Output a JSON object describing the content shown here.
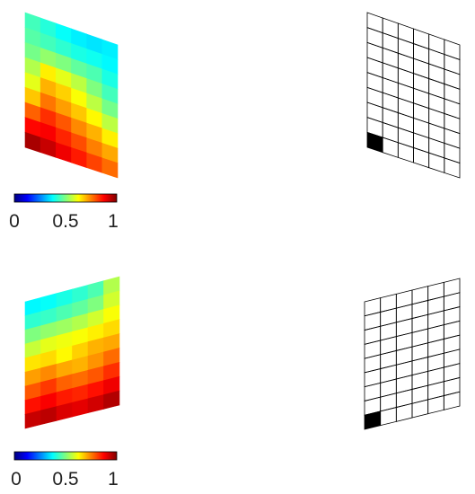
{
  "colormap": {
    "name": "jet",
    "stops": [
      "#00007f",
      "#0000ff",
      "#007fff",
      "#00ffff",
      "#7fff7f",
      "#ffff00",
      "#ff7f00",
      "#ff0000",
      "#7f0000"
    ]
  },
  "colorbar": {
    "range": [
      0,
      1
    ],
    "tick_labels": [
      "0",
      "0.5",
      "1"
    ]
  },
  "grid": {
    "rows": 9,
    "cols": 6,
    "line_color": "#000000",
    "fill_color": "#000000"
  },
  "panels": [
    {
      "field": [
        [
          0.44,
          0.41,
          0.38,
          0.36,
          0.35,
          0.36
        ],
        [
          0.46,
          0.44,
          0.42,
          0.4,
          0.39,
          0.37
        ],
        [
          0.49,
          0.52,
          0.5,
          0.47,
          0.45,
          0.4
        ],
        [
          0.55,
          0.64,
          0.6,
          0.56,
          0.5,
          0.44
        ],
        [
          0.6,
          0.7,
          0.67,
          0.62,
          0.56,
          0.49
        ],
        [
          0.68,
          0.76,
          0.72,
          0.68,
          0.63,
          0.56
        ],
        [
          0.78,
          0.83,
          0.79,
          0.74,
          0.7,
          0.64
        ],
        [
          0.87,
          0.88,
          0.84,
          0.8,
          0.75,
          0.71
        ],
        [
          0.96,
          0.93,
          0.89,
          0.85,
          0.81,
          0.77
        ]
      ],
      "highlight_cell": {
        "row": 8,
        "col": 0
      }
    },
    {
      "field": [
        [
          0.37,
          0.38,
          0.4,
          0.42,
          0.45,
          0.55
        ],
        [
          0.42,
          0.43,
          0.45,
          0.47,
          0.5,
          0.58
        ],
        [
          0.5,
          0.52,
          0.53,
          0.55,
          0.58,
          0.62
        ],
        [
          0.57,
          0.6,
          0.61,
          0.62,
          0.64,
          0.66
        ],
        [
          0.65,
          0.66,
          0.63,
          0.67,
          0.7,
          0.71
        ],
        [
          0.72,
          0.74,
          0.71,
          0.7,
          0.73,
          0.77
        ],
        [
          0.79,
          0.82,
          0.78,
          0.77,
          0.79,
          0.83
        ],
        [
          0.86,
          0.88,
          0.85,
          0.84,
          0.86,
          0.89
        ],
        [
          0.93,
          0.94,
          0.91,
          0.9,
          0.92,
          0.95
        ]
      ],
      "highlight_cell": {
        "row": 8,
        "col": 0
      }
    }
  ]
}
